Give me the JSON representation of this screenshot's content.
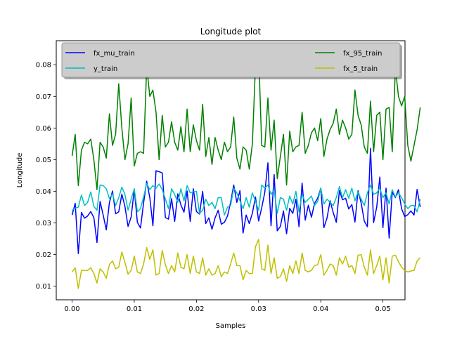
{
  "chart_data": {
    "type": "line",
    "title": "Longitude plot",
    "xlabel": "Samples",
    "ylabel": "Longitude",
    "xlim": [
      -0.00255,
      0.05355
    ],
    "ylim": [
      0.0057,
      0.0876
    ],
    "xticks": [
      0.0,
      0.01,
      0.02,
      0.03,
      0.04,
      0.05
    ],
    "xtick_labels": [
      "0.00",
      "0.01",
      "0.02",
      "0.03",
      "0.04",
      "0.05"
    ],
    "yticks": [
      0.01,
      0.02,
      0.03,
      0.04,
      0.05,
      0.06,
      0.07,
      0.08
    ],
    "ytick_labels": [
      "0.01",
      "0.02",
      "0.03",
      "0.04",
      "0.05",
      "0.06",
      "0.07",
      "0.08"
    ],
    "grid": false,
    "legend": {
      "placement": "upper",
      "columns": 2
    },
    "x_start": 0.0,
    "x_step": 0.0005,
    "series": [
      {
        "name": "fx_mu_train",
        "color": "#0000ff",
        "values": [
          0.0325,
          0.0362,
          0.0203,
          0.0333,
          0.0315,
          0.0322,
          0.0336,
          0.0317,
          0.0238,
          0.0368,
          0.0325,
          0.0278,
          0.0364,
          0.0401,
          0.0329,
          0.0335,
          0.0391,
          0.0352,
          0.0289,
          0.0319,
          0.0406,
          0.0302,
          0.0284,
          0.0363,
          0.0432,
          0.038,
          0.0291,
          0.0465,
          0.0462,
          0.0458,
          0.0317,
          0.0312,
          0.0377,
          0.0305,
          0.0392,
          0.0357,
          0.0334,
          0.0401,
          0.0305,
          0.0408,
          0.0336,
          0.0328,
          0.04,
          0.0298,
          0.0316,
          0.028,
          0.0316,
          0.034,
          0.0296,
          0.0302,
          0.0322,
          0.0365,
          0.042,
          0.0365,
          0.0402,
          0.0268,
          0.0325,
          0.0298,
          0.0331,
          0.0382,
          0.0306,
          0.0348,
          0.0397,
          0.049,
          0.0291,
          0.0453,
          0.0275,
          0.0289,
          0.0338,
          0.0266,
          0.0346,
          0.033,
          0.0375,
          0.0288,
          0.0426,
          0.0309,
          0.0356,
          0.0318,
          0.0362,
          0.0378,
          0.041,
          0.0285,
          0.0315,
          0.037,
          0.0333,
          0.0302,
          0.0402,
          0.0373,
          0.0378,
          0.0344,
          0.0358,
          0.0303,
          0.0402,
          0.0363,
          0.0306,
          0.0288,
          0.0536,
          0.0301,
          0.035,
          0.0445,
          0.0285,
          0.041,
          0.0252,
          0.0398,
          0.038,
          0.0405,
          0.0345,
          0.032,
          0.0326,
          0.0338,
          0.0325,
          0.0406,
          0.035
        ]
      },
      {
        "name": "y_train",
        "color": "#00bfbf",
        "values": [
          0.034,
          0.0347,
          0.035,
          0.0388,
          0.0355,
          0.0365,
          0.0398,
          0.0352,
          0.034,
          0.042,
          0.0418,
          0.0408,
          0.0377,
          0.0392,
          0.0355,
          0.038,
          0.0413,
          0.039,
          0.034,
          0.0375,
          0.0408,
          0.0335,
          0.0345,
          0.0382,
          0.0425,
          0.0405,
          0.0418,
          0.041,
          0.0423,
          0.0405,
          0.0376,
          0.0345,
          0.0408,
          0.039,
          0.0365,
          0.0408,
          0.037,
          0.0418,
          0.0395,
          0.0398,
          0.04,
          0.033,
          0.034,
          0.0375,
          0.0355,
          0.0365,
          0.0345,
          0.038,
          0.038,
          0.0325,
          0.035,
          0.0355,
          0.041,
          0.0395,
          0.037,
          0.0345,
          0.038,
          0.035,
          0.0395,
          0.0368,
          0.034,
          0.042,
          0.041,
          0.042,
          0.039,
          0.0405,
          0.033,
          0.038,
          0.0375,
          0.034,
          0.0385,
          0.036,
          0.04,
          0.0335,
          0.039,
          0.0365,
          0.0375,
          0.0385,
          0.0355,
          0.0368,
          0.041,
          0.036,
          0.0375,
          0.0365,
          0.0355,
          0.038,
          0.0415,
          0.038,
          0.0405,
          0.0378,
          0.041,
          0.037,
          0.0398,
          0.0375,
          0.0355,
          0.0395,
          0.042,
          0.039,
          0.0395,
          0.041,
          0.038,
          0.0395,
          0.036,
          0.0405,
          0.0382,
          0.0395,
          0.038,
          0.036,
          0.0345,
          0.0355,
          0.0355,
          0.0335,
          0.0375
        ]
      },
      {
        "name": "fx_95_train",
        "color": "#008000",
        "values": [
          0.0512,
          0.058,
          0.0418,
          0.053,
          0.0555,
          0.055,
          0.0565,
          0.05,
          0.0405,
          0.0555,
          0.054,
          0.0505,
          0.0645,
          0.0545,
          0.058,
          0.074,
          0.06,
          0.05,
          0.055,
          0.0695,
          0.048,
          0.052,
          0.0525,
          0.052,
          0.0795,
          0.07,
          0.072,
          0.065,
          0.05,
          0.064,
          0.054,
          0.0555,
          0.062,
          0.0555,
          0.053,
          0.0605,
          0.0525,
          0.066,
          0.0525,
          0.061,
          0.056,
          0.053,
          0.0675,
          0.051,
          0.057,
          0.0485,
          0.057,
          0.053,
          0.05,
          0.0555,
          0.0525,
          0.054,
          0.0635,
          0.0505,
          0.047,
          0.054,
          0.053,
          0.047,
          0.055,
          0.08,
          0.0842,
          0.0545,
          0.054,
          0.0695,
          0.053,
          0.0625,
          0.044,
          0.051,
          0.058,
          0.042,
          0.059,
          0.0525,
          0.054,
          0.0545,
          0.065,
          0.052,
          0.0545,
          0.0585,
          0.06,
          0.056,
          0.063,
          0.051,
          0.0565,
          0.0595,
          0.0615,
          0.066,
          0.058,
          0.0625,
          0.06,
          0.0565,
          0.058,
          0.072,
          0.064,
          0.061,
          0.054,
          0.052,
          0.0685,
          0.0525,
          0.064,
          0.065,
          0.05,
          0.066,
          0.0665,
          0.0525,
          0.079,
          0.07,
          0.067,
          0.07,
          0.0545,
          0.0495,
          0.0545,
          0.0595,
          0.0665
        ]
      },
      {
        "name": "fx_5_train",
        "color": "#bfbf00",
        "values": [
          0.0145,
          0.0158,
          0.0093,
          0.015,
          0.015,
          0.015,
          0.0158,
          0.014,
          0.011,
          0.0155,
          0.0145,
          0.0125,
          0.0168,
          0.018,
          0.0155,
          0.016,
          0.0208,
          0.0175,
          0.0138,
          0.015,
          0.0195,
          0.0145,
          0.014,
          0.017,
          0.0222,
          0.0185,
          0.0215,
          0.0135,
          0.014,
          0.0213,
          0.0168,
          0.014,
          0.0165,
          0.0145,
          0.0205,
          0.016,
          0.0155,
          0.02,
          0.014,
          0.0195,
          0.0145,
          0.014,
          0.019,
          0.0135,
          0.0155,
          0.0135,
          0.014,
          0.0165,
          0.013,
          0.0145,
          0.014,
          0.017,
          0.0205,
          0.0165,
          0.0165,
          0.012,
          0.015,
          0.014,
          0.014,
          0.0225,
          0.0248,
          0.0155,
          0.015,
          0.023,
          0.014,
          0.019,
          0.0125,
          0.013,
          0.0155,
          0.0115,
          0.0165,
          0.014,
          0.018,
          0.014,
          0.0205,
          0.015,
          0.0145,
          0.015,
          0.0165,
          0.0168,
          0.02,
          0.0135,
          0.015,
          0.017,
          0.0165,
          0.0135,
          0.019,
          0.017,
          0.0195,
          0.016,
          0.0165,
          0.014,
          0.0198,
          0.02,
          0.016,
          0.0135,
          0.0215,
          0.014,
          0.0165,
          0.0195,
          0.012,
          0.019,
          0.011,
          0.0195,
          0.0198,
          0.0178,
          0.016,
          0.015,
          0.0145,
          0.0148,
          0.015,
          0.018,
          0.019
        ]
      }
    ]
  }
}
